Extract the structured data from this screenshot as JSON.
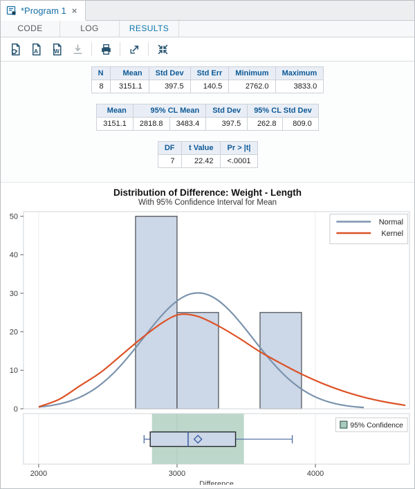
{
  "window": {
    "tab_title": "*Program 1",
    "close_label": "×",
    "program_icon": "program-file-icon"
  },
  "tabs": [
    {
      "label": "CODE",
      "active": false
    },
    {
      "label": "LOG",
      "active": false
    },
    {
      "label": "RESULTS",
      "active": true
    }
  ],
  "toolbar": {
    "icons": [
      {
        "name": "html-results-icon",
        "disabled": false,
        "separator_before": false
      },
      {
        "name": "pdf-output-icon",
        "disabled": false,
        "separator_before": false
      },
      {
        "name": "word-output-icon",
        "disabled": false,
        "separator_before": false
      },
      {
        "name": "download-icon",
        "disabled": true,
        "separator_before": false
      },
      {
        "name": "print-icon",
        "disabled": false,
        "separator_before": true
      },
      {
        "name": "open-new-window-icon",
        "disabled": false,
        "separator_before": true
      },
      {
        "name": "collapse-icon",
        "disabled": false,
        "separator_before": true
      }
    ]
  },
  "tables": [
    {
      "name": "summary-statistics-table",
      "widths": [
        26,
        56,
        52,
        50,
        58,
        58
      ],
      "columns": [
        {
          "label": "N"
        },
        {
          "label": "Mean"
        },
        {
          "label": "Std Dev"
        },
        {
          "label": "Std Err"
        },
        {
          "label": "Minimum"
        },
        {
          "label": "Maximum"
        }
      ],
      "rows": [
        [
          "8",
          "3151.1",
          "397.5",
          "140.5",
          "2762.0",
          "3833.0"
        ]
      ]
    },
    {
      "name": "confidence-limits-table",
      "widths": [
        50,
        50,
        50,
        52,
        48,
        48
      ],
      "columns": [
        {
          "label": "Mean"
        },
        {
          "label": "95% CL Mean",
          "colspan": 2
        },
        {
          "label": "Std Dev"
        },
        {
          "label": "95% CL Std Dev",
          "colspan": 2
        }
      ],
      "rows": [
        [
          "3151.1",
          "2818.8",
          "3483.4",
          "397.5",
          "262.8",
          "809.0"
        ]
      ]
    },
    {
      "name": "t-test-table",
      "widths": [
        34,
        56,
        54
      ],
      "columns": [
        {
          "label": "DF"
        },
        {
          "label": "t Value"
        },
        {
          "label": "Pr > |t|"
        }
      ],
      "rows": [
        [
          "7",
          "22.42",
          "<.0001"
        ]
      ]
    }
  ],
  "chart_colors": {
    "bar_fill": "#ccd7e7",
    "bar_stroke": "#45484e",
    "normal": "#7b93ad",
    "kernel": "#dd5226",
    "band": "#bdd8cb",
    "box_stroke": "#24272c",
    "median": "#3f5fa5",
    "whisker": "#5671a8",
    "legend_border": "#c9cdd1",
    "panel_border": "#d0d4d8",
    "tick_text": "#37393b",
    "swatch_fill": "#a8cbbd",
    "swatch_stroke": "#3c6156"
  },
  "chart_data": [
    {
      "type": "histogram",
      "title": "Distribution of Difference: Weight - Length",
      "subtitle": "With 95% Confidence Interval for Mean",
      "x_range": [
        1890,
        4680
      ],
      "y_range": [
        0,
        51.2
      ],
      "xticks": [
        "2000",
        "3000",
        "4000"
      ],
      "xtick_values": [
        2000,
        3000,
        4000
      ],
      "yticks": [
        "0",
        "10",
        "20",
        "30",
        "40",
        "50"
      ],
      "ytick_values": [
        0,
        10,
        20,
        30,
        40,
        50
      ],
      "bars": {
        "bin_edges": [
          2700,
          3000,
          3300,
          3600,
          3900
        ],
        "heights_pct": [
          50,
          25,
          0,
          25
        ]
      },
      "normal_curve": {
        "mean": 3151.1,
        "std_dev": 397.5,
        "peak_pct": 30.1,
        "x_range": [
          2000,
          4360
        ]
      },
      "kernel_curve": {
        "points": [
          [
            2000,
            0.5
          ],
          [
            2150,
            2.5
          ],
          [
            2300,
            6.0
          ],
          [
            2450,
            9.5
          ],
          [
            2600,
            14.0
          ],
          [
            2750,
            18.5
          ],
          [
            2900,
            22.5
          ],
          [
            3020,
            24.5
          ],
          [
            3150,
            24.0
          ],
          [
            3300,
            21.5
          ],
          [
            3450,
            18.3
          ],
          [
            3600,
            14.8
          ],
          [
            3750,
            11.8
          ],
          [
            3900,
            9.0
          ],
          [
            4050,
            6.6
          ],
          [
            4200,
            4.6
          ],
          [
            4350,
            3.0
          ],
          [
            4500,
            1.8
          ],
          [
            4650,
            0.9
          ]
        ]
      },
      "legend": [
        {
          "label": "Normal"
        },
        {
          "label": "Kernel"
        }
      ]
    },
    {
      "type": "boxplot",
      "min": 2762,
      "q1": 2806,
      "median": 3080,
      "mean": 3151.1,
      "q3": 3423,
      "max": 3833,
      "ci_band": [
        2818.8,
        3483.4
      ],
      "legend": [
        {
          "label": "95% Confidence"
        }
      ],
      "xaxis_label": "Difference"
    }
  ]
}
